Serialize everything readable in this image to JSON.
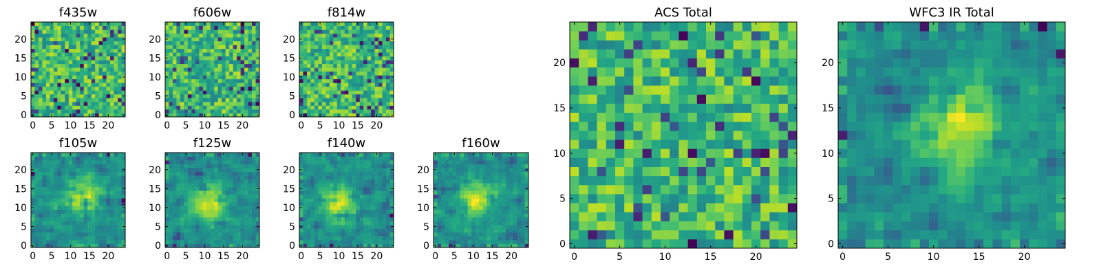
{
  "chart_data": [
    {
      "type": "heatmap",
      "title": "f435w",
      "grid_size": 25,
      "xticks": [
        0,
        5,
        10,
        15,
        20
      ],
      "yticks": [
        0,
        5,
        10,
        15,
        20
      ],
      "colormap": "viridis",
      "pattern": "noise",
      "seed": 11
    },
    {
      "type": "heatmap",
      "title": "f606w",
      "grid_size": 25,
      "xticks": [
        0,
        5,
        10,
        15,
        20
      ],
      "yticks": [
        0,
        5,
        10,
        15,
        20
      ],
      "colormap": "viridis",
      "pattern": "noise",
      "seed": 23
    },
    {
      "type": "heatmap",
      "title": "f814w",
      "grid_size": 25,
      "xticks": [
        0,
        5,
        10,
        15,
        20
      ],
      "yticks": [
        0,
        5,
        10,
        15,
        20
      ],
      "colormap": "viridis",
      "pattern": "noise",
      "seed": 37
    },
    {
      "type": "heatmap",
      "title": "f105w",
      "grid_size": 25,
      "xticks": [
        0,
        5,
        10,
        15,
        20
      ],
      "yticks": [
        0,
        5,
        10,
        15,
        20
      ],
      "colormap": "viridis",
      "pattern": "blob",
      "blob_center": [
        13,
        13
      ],
      "seed": 41
    },
    {
      "type": "heatmap",
      "title": "f125w",
      "grid_size": 25,
      "xticks": [
        0,
        5,
        10,
        15,
        20
      ],
      "yticks": [
        0,
        5,
        10,
        15,
        20
      ],
      "colormap": "viridis",
      "pattern": "blob",
      "blob_center": [
        11,
        11
      ],
      "seed": 53
    },
    {
      "type": "heatmap",
      "title": "f140w",
      "grid_size": 25,
      "xticks": [
        0,
        5,
        10,
        15,
        20
      ],
      "yticks": [
        0,
        5,
        10,
        15,
        20
      ],
      "colormap": "viridis",
      "pattern": "blob",
      "blob_center": [
        10,
        11
      ],
      "seed": 67
    },
    {
      "type": "heatmap",
      "title": "f160w",
      "grid_size": 25,
      "xticks": [
        0,
        5,
        10,
        15,
        20
      ],
      "yticks": [
        0,
        5,
        10,
        15,
        20
      ],
      "colormap": "viridis",
      "pattern": "blob",
      "blob_center": [
        11,
        12
      ],
      "seed": 79
    },
    {
      "type": "heatmap",
      "title": "ACS Total",
      "grid_size": 25,
      "xticks": [
        0,
        5,
        10,
        15,
        20
      ],
      "yticks": [
        0,
        5,
        10,
        15,
        20
      ],
      "colormap": "viridis",
      "pattern": "noise",
      "seed": 97
    },
    {
      "type": "heatmap",
      "title": "WFC3 IR Total",
      "grid_size": 25,
      "xticks": [
        0,
        5,
        10,
        15,
        20
      ],
      "yticks": [
        0,
        5,
        10,
        15,
        20
      ],
      "colormap": "viridis",
      "pattern": "blob",
      "blob_center": [
        13,
        13
      ],
      "seed": 113
    }
  ]
}
